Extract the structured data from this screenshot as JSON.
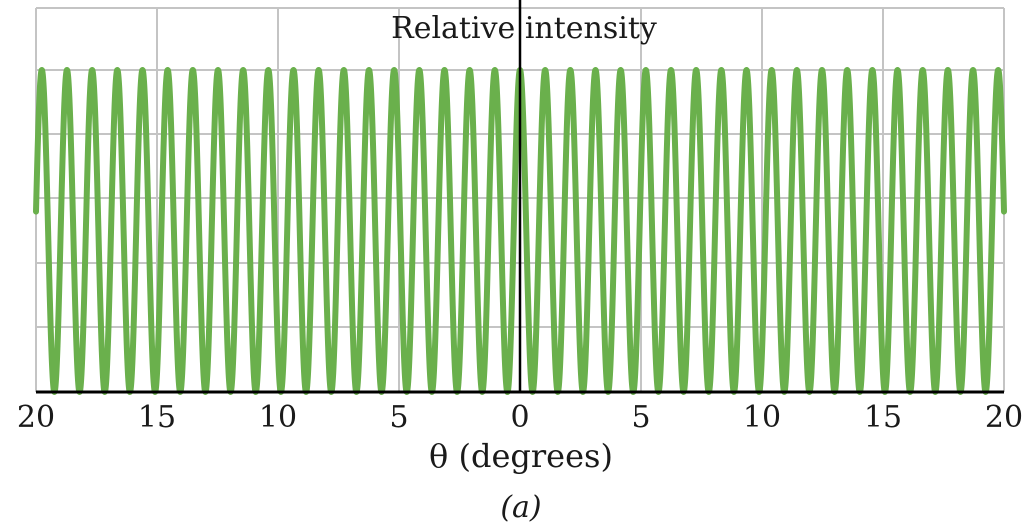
{
  "chart_data": {
    "type": "line",
    "title": "",
    "ylabel": "Relative intensity",
    "xlabel": "θ (degrees)",
    "caption": "(a)",
    "x_tick_labels": [
      "20",
      "15",
      "10",
      "5",
      "0",
      "5",
      "10",
      "15",
      "20"
    ],
    "x_tick_values": [
      -20,
      -15,
      -10,
      -5,
      0,
      5,
      10,
      15,
      20
    ],
    "xlim": [
      -20,
      20
    ],
    "ylim": [
      0,
      1
    ],
    "grid": true,
    "series": [
      {
        "function": "cos^2",
        "fringes_per_side": 20,
        "period_degrees": 1.04,
        "peak_value": 1,
        "color": "#6ab04c"
      }
    ]
  },
  "colors": {
    "curve": "#6ab04c",
    "grid": "#c4c4c4",
    "axis": "#000000"
  }
}
